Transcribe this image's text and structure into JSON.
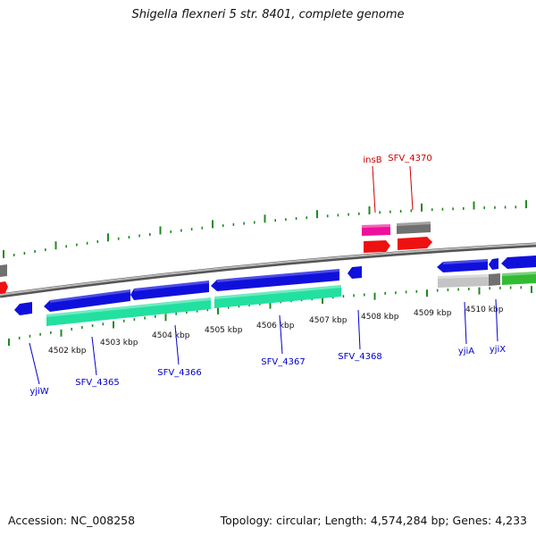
{
  "title": "Shigella flexneri 5 str. 8401, complete genome",
  "footer": {
    "accession": "Accession: NC_008258",
    "summary": "Topology: circular; Length: 4,574,284 bp; Genes: 4,233"
  },
  "colors": {
    "top_labels": "#cc0000",
    "bottom_labels": "#0000cc",
    "ticks": "#1f8a1f",
    "backbone": "#888888",
    "cds_blue": "#1010dd",
    "cds_teal": "#22e0a0",
    "cds_red": "#ee1111",
    "cds_pink": "#ee1199",
    "cds_gray": "#707070",
    "cds_silver": "#c4c4c4",
    "cds_green": "#33bb33"
  },
  "scale_labels": [
    "4502 kbp",
    "4503 kbp",
    "4504 kbp",
    "4505 kbp",
    "4506 kbp",
    "4507 kbp",
    "4508 kbp",
    "4509 kbp",
    "4510 kbp"
  ],
  "top_genes": [
    "insB",
    "SFV_4370"
  ],
  "bottom_genes": [
    "yjiW",
    "SFV_4365",
    "SFV_4366",
    "SFV_4367",
    "SFV_4368",
    "yjiA",
    "yjiX"
  ]
}
